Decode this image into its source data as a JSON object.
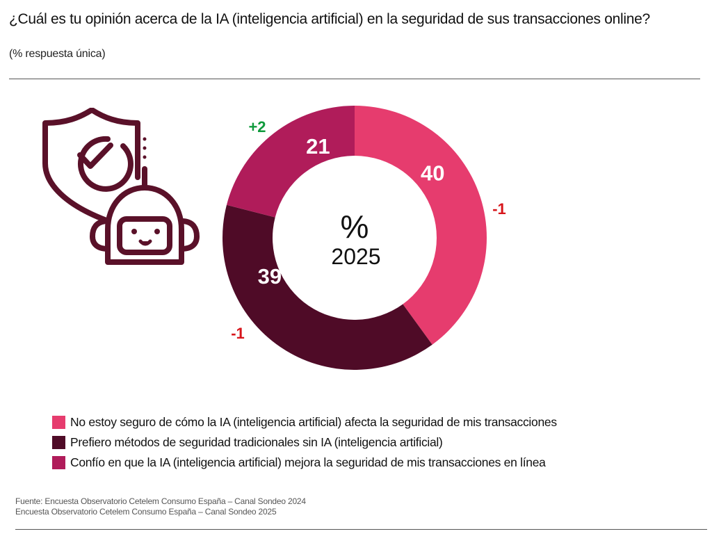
{
  "header": {
    "title": "¿Cuál es tu opinión acerca de la IA (inteligencia artificial) en la seguridad de sus transacciones online?",
    "subtitle": "(% respuesta única)"
  },
  "icon": {
    "name": "shield-check-robot-icon"
  },
  "chart_data": {
    "type": "pie",
    "variant": "donut",
    "title": "¿Cuál es tu opinión acerca de la IA (inteligencia artificial) en la seguridad de sus transacciones online?",
    "center_label": {
      "symbol": "%",
      "year": "2025"
    },
    "unit": "%",
    "start": "12 o'clock, clockwise",
    "slices": [
      {
        "label": "No estoy seguro de cómo la IA (inteligencia artificial) afecta la seguridad de mis transacciones",
        "value": 40,
        "change": "-1",
        "color": "#e63c6e",
        "change_color": "#d7151b"
      },
      {
        "label": "Prefiero métodos de seguridad tradicionales sin IA (inteligencia artificial)",
        "value": 39,
        "change": "-1",
        "color": "#4f0b27",
        "change_color": "#d7151b"
      },
      {
        "label": "Confío en que la IA (inteligencia artificial) mejora la seguridad de mis transacciones en línea",
        "value": 21,
        "change": "+2",
        "color": "#b01c5a",
        "change_color": "#0f9a3c"
      }
    ],
    "legend_position": "bottom-left"
  },
  "legend": {
    "items": [
      {
        "label": "No estoy seguro de cómo la IA (inteligencia artificial) afecta la seguridad de mis transacciones",
        "color": "#e63c6e"
      },
      {
        "label": "Prefiero métodos de seguridad tradicionales sin IA (inteligencia artificial)",
        "color": "#4f0b27"
      },
      {
        "label": "Confío en que la IA (inteligencia artificial) mejora la seguridad de mis transacciones en línea",
        "color": "#b01c5a"
      }
    ]
  },
  "source": {
    "line1": "Fuente: Encuesta Observatorio Cetelem Consumo España – Canal Sondeo 2024",
    "line2": "Encuesta Observatorio Cetelem Consumo España – Canal Sondeo 2025"
  },
  "colors": {
    "icon": "#5a1129"
  }
}
